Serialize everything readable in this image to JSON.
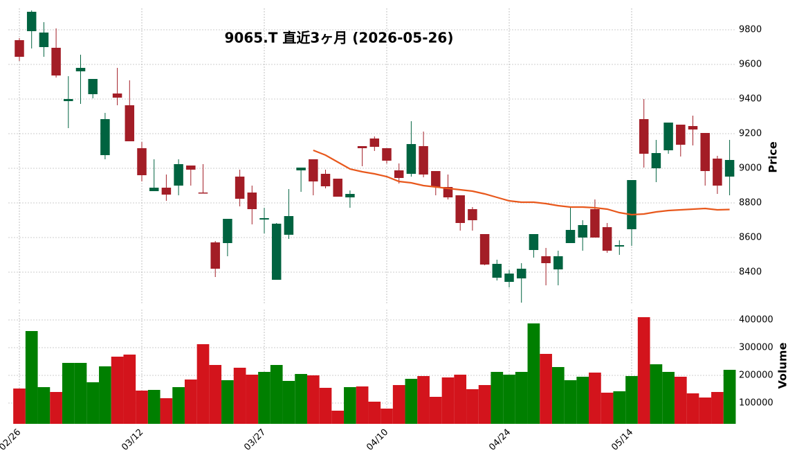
{
  "chart_data": [
    {
      "type": "candlestick",
      "title": "9065.T  直近3ヶ月  (2026-05-26)",
      "ylabel": "Price",
      "categories": [
        "02/26",
        null,
        null,
        null,
        null,
        null,
        null,
        null,
        null,
        null,
        "03/12",
        null,
        null,
        null,
        null,
        null,
        null,
        null,
        null,
        null,
        "03/27",
        null,
        null,
        null,
        null,
        null,
        null,
        null,
        null,
        null,
        "04/10",
        null,
        null,
        null,
        null,
        null,
        null,
        null,
        null,
        null,
        "04/24",
        null,
        null,
        null,
        null,
        null,
        null,
        null,
        null,
        null,
        "05/14",
        null,
        null,
        null,
        null,
        null,
        null,
        null,
        null
      ],
      "open": [
        9740,
        9792,
        9700,
        9696,
        9388,
        9560,
        9428,
        9076,
        9432,
        9364,
        9116,
        8868,
        8888,
        8900,
        9016,
        8860,
        8572,
        8568,
        8952,
        8860,
        8704,
        8356,
        8616,
        8988,
        9052,
        8968,
        8940,
        8832,
        9128,
        9172,
        9116,
        8988,
        8968,
        9128,
        8984,
        8892,
        8844,
        8764,
        8620,
        8368,
        8344,
        8364,
        8528,
        8492,
        8416,
        8568,
        8600,
        8764,
        8660,
        8548,
        8648,
        9284,
        9000,
        9104,
        9252,
        9244,
        9204,
        9056,
        8952
      ],
      "high": [
        9752,
        9912,
        9844,
        9808,
        9532,
        9656,
        9516,
        9320,
        9580,
        9508,
        9152,
        9052,
        8964,
        9052,
        9016,
        9024,
        8580,
        8708,
        8992,
        8900,
        8772,
        8684,
        8880,
        9004,
        9052,
        8992,
        8940,
        8872,
        9128,
        9184,
        9116,
        9028,
        9272,
        9212,
        8984,
        8964,
        8844,
        8776,
        8620,
        8472,
        8412,
        8452,
        8620,
        8540,
        8524,
        8772,
        8700,
        8820,
        8684,
        8584,
        8932,
        9400,
        9164,
        9264,
        9252,
        9304,
        9204,
        9072,
        9164
      ],
      "low": [
        9620,
        9692,
        9644,
        9524,
        9232,
        9372,
        9404,
        9052,
        9364,
        9156,
        8924,
        8868,
        8812,
        8844,
        8900,
        8856,
        8372,
        8492,
        8780,
        8676,
        8624,
        8356,
        8592,
        8864,
        8844,
        8884,
        8836,
        8772,
        9012,
        9100,
        9028,
        8912,
        8952,
        8948,
        8844,
        8820,
        8640,
        8640,
        8440,
        8352,
        8312,
        8224,
        8484,
        8324,
        8324,
        8568,
        8524,
        8600,
        8512,
        8500,
        8552,
        9004,
        8920,
        9084,
        9068,
        9132,
        8900,
        8852,
        8844
      ],
      "close": [
        9644,
        9904,
        9784,
        9536,
        9400,
        9580,
        9516,
        9284,
        9408,
        9156,
        8960,
        8888,
        8848,
        9024,
        8992,
        8856,
        8420,
        8708,
        8824,
        8764,
        8712,
        8680,
        8724,
        9004,
        8924,
        8896,
        8836,
        8852,
        9116,
        9124,
        9044,
        8944,
        9140,
        8964,
        8892,
        8832,
        8684,
        8700,
        8444,
        8448,
        8392,
        8420,
        8620,
        8452,
        8492,
        8644,
        8672,
        8600,
        8524,
        8556,
        8932,
        9084,
        9088,
        9264,
        9136,
        9224,
        8984,
        8900,
        9048
      ],
      "up_color": "#006340",
      "down_color": "#a31d26",
      "series": [
        {
          "color": "#e8581c",
          "values": [
            null,
            null,
            null,
            null,
            null,
            null,
            null,
            null,
            null,
            null,
            null,
            null,
            null,
            null,
            null,
            null,
            null,
            null,
            null,
            null,
            null,
            null,
            null,
            null,
            9104,
            9076,
            9036,
            8996,
            8980,
            8968,
            8952,
            8924,
            8916,
            8900,
            8892,
            8884,
            8876,
            8868,
            8852,
            8832,
            8812,
            8804,
            8804,
            8796,
            8784,
            8776,
            8776,
            8772,
            8764,
            8744,
            8732,
            8736,
            8748,
            8756,
            8760,
            8764,
            8768,
            8760,
            8762
          ]
        }
      ],
      "ylim": [
        8212,
        9924
      ],
      "yticks": [
        8400,
        8600,
        8800,
        9000,
        9200,
        9400,
        9600,
        9800
      ],
      "grid": true
    },
    {
      "type": "bar",
      "ylabel": "Volume",
      "values": [
        152500,
        360000,
        157500,
        140000,
        245000,
        245000,
        175000,
        232500,
        267500,
        275000,
        145000,
        147500,
        117500,
        157500,
        185000,
        312500,
        237500,
        182500,
        227500,
        202500,
        212500,
        237500,
        180000,
        205000,
        200000,
        155000,
        72500,
        157500,
        160000,
        105000,
        80000,
        165000,
        187500,
        197500,
        122500,
        192500,
        202500,
        150000,
        165000,
        212500,
        202500,
        212500,
        387500,
        277500,
        230000,
        182500,
        195000,
        210000,
        137500,
        142500,
        197500,
        410000,
        240000,
        212500,
        195000,
        135000,
        120000,
        140000,
        220000
      ],
      "up_color": "#007f00",
      "down_color": "#d3141c",
      "ylim": [
        25000,
        437500
      ],
      "yticks": [
        100000,
        200000,
        300000,
        400000
      ],
      "grid": true
    }
  ]
}
